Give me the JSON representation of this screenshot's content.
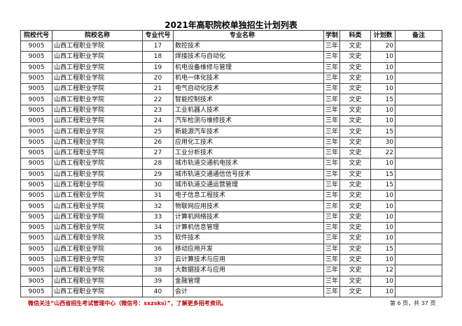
{
  "title": "2021年高职院校单独招生计划列表",
  "headers": [
    "院校代号",
    "院校名称",
    "专业代号",
    "专业名称",
    "学制",
    "科类",
    "计划数",
    "备注"
  ],
  "rows": [
    [
      "9005",
      "山西工程职业学院",
      "17",
      "数控技术",
      "三年",
      "文史",
      "20",
      ""
    ],
    [
      "9005",
      "山西工程职业学院",
      "18",
      "焊接技术与自动化",
      "三年",
      "文史",
      "10",
      ""
    ],
    [
      "9005",
      "山西工程职业学院",
      "19",
      "机电设备维修与管理",
      "三年",
      "文史",
      "10",
      ""
    ],
    [
      "9005",
      "山西工程职业学院",
      "20",
      "机电一体化技术",
      "三年",
      "文史",
      "10",
      ""
    ],
    [
      "9005",
      "山西工程职业学院",
      "21",
      "电气自动化技术",
      "三年",
      "文史",
      "10",
      ""
    ],
    [
      "9005",
      "山西工程职业学院",
      "22",
      "智能控制技术",
      "三年",
      "文史",
      "15",
      ""
    ],
    [
      "9005",
      "山西工程职业学院",
      "23",
      "工业机器人技术",
      "三年",
      "文史",
      "10",
      ""
    ],
    [
      "9005",
      "山西工程职业学院",
      "24",
      "汽车检测与维修技术",
      "三年",
      "文史",
      "10",
      ""
    ],
    [
      "9005",
      "山西工程职业学院",
      "25",
      "新能源汽车技术",
      "三年",
      "文史",
      "15",
      ""
    ],
    [
      "9005",
      "山西工程职业学院",
      "26",
      "应用化工技术",
      "三年",
      "文史",
      "30",
      ""
    ],
    [
      "9005",
      "山西工程职业学院",
      "27",
      "工业分析技术",
      "三年",
      "文史",
      "22",
      ""
    ],
    [
      "9005",
      "山西工程职业学院",
      "28",
      "城市轨道交通机电技术",
      "三年",
      "文史",
      "10",
      ""
    ],
    [
      "9005",
      "山西工程职业学院",
      "29",
      "城市轨道交通通信信号技术",
      "三年",
      "文史",
      "15",
      ""
    ],
    [
      "9005",
      "山西工程职业学院",
      "30",
      "城市轨道交通运营管理",
      "三年",
      "文史",
      "15",
      ""
    ],
    [
      "9005",
      "山西工程职业学院",
      "31",
      "电子信息工程技术",
      "三年",
      "文史",
      "10",
      ""
    ],
    [
      "9005",
      "山西工程职业学院",
      "32",
      "物联网应用技术",
      "三年",
      "文史",
      "10",
      ""
    ],
    [
      "9005",
      "山西工程职业学院",
      "33",
      "计算机网络技术",
      "三年",
      "文史",
      "10",
      ""
    ],
    [
      "9005",
      "山西工程职业学院",
      "34",
      "计算机信息管理",
      "三年",
      "文史",
      "10",
      ""
    ],
    [
      "9005",
      "山西工程职业学院",
      "35",
      "软件技术",
      "三年",
      "文史",
      "10",
      ""
    ],
    [
      "9005",
      "山西工程职业学院",
      "36",
      "移动应用开发",
      "三年",
      "文史",
      "15",
      ""
    ],
    [
      "9005",
      "山西工程职业学院",
      "37",
      "云计算技术与应用",
      "三年",
      "文史",
      "10",
      ""
    ],
    [
      "9005",
      "山西工程职业学院",
      "38",
      "大数据技术与应用",
      "三年",
      "文史",
      "12",
      ""
    ],
    [
      "9005",
      "山西工程职业学院",
      "39",
      "金融管理",
      "三年",
      "文史",
      "10",
      ""
    ],
    [
      "9005",
      "山西工程职业学院",
      "40",
      "会计",
      "三年",
      "文史",
      "10",
      ""
    ]
  ],
  "footnote": "微信关注“山西省招生考试管理中心（微信号：sxzsks）”，了解更多招考资讯。",
  "page_info": "第 6 页，共 37 页"
}
